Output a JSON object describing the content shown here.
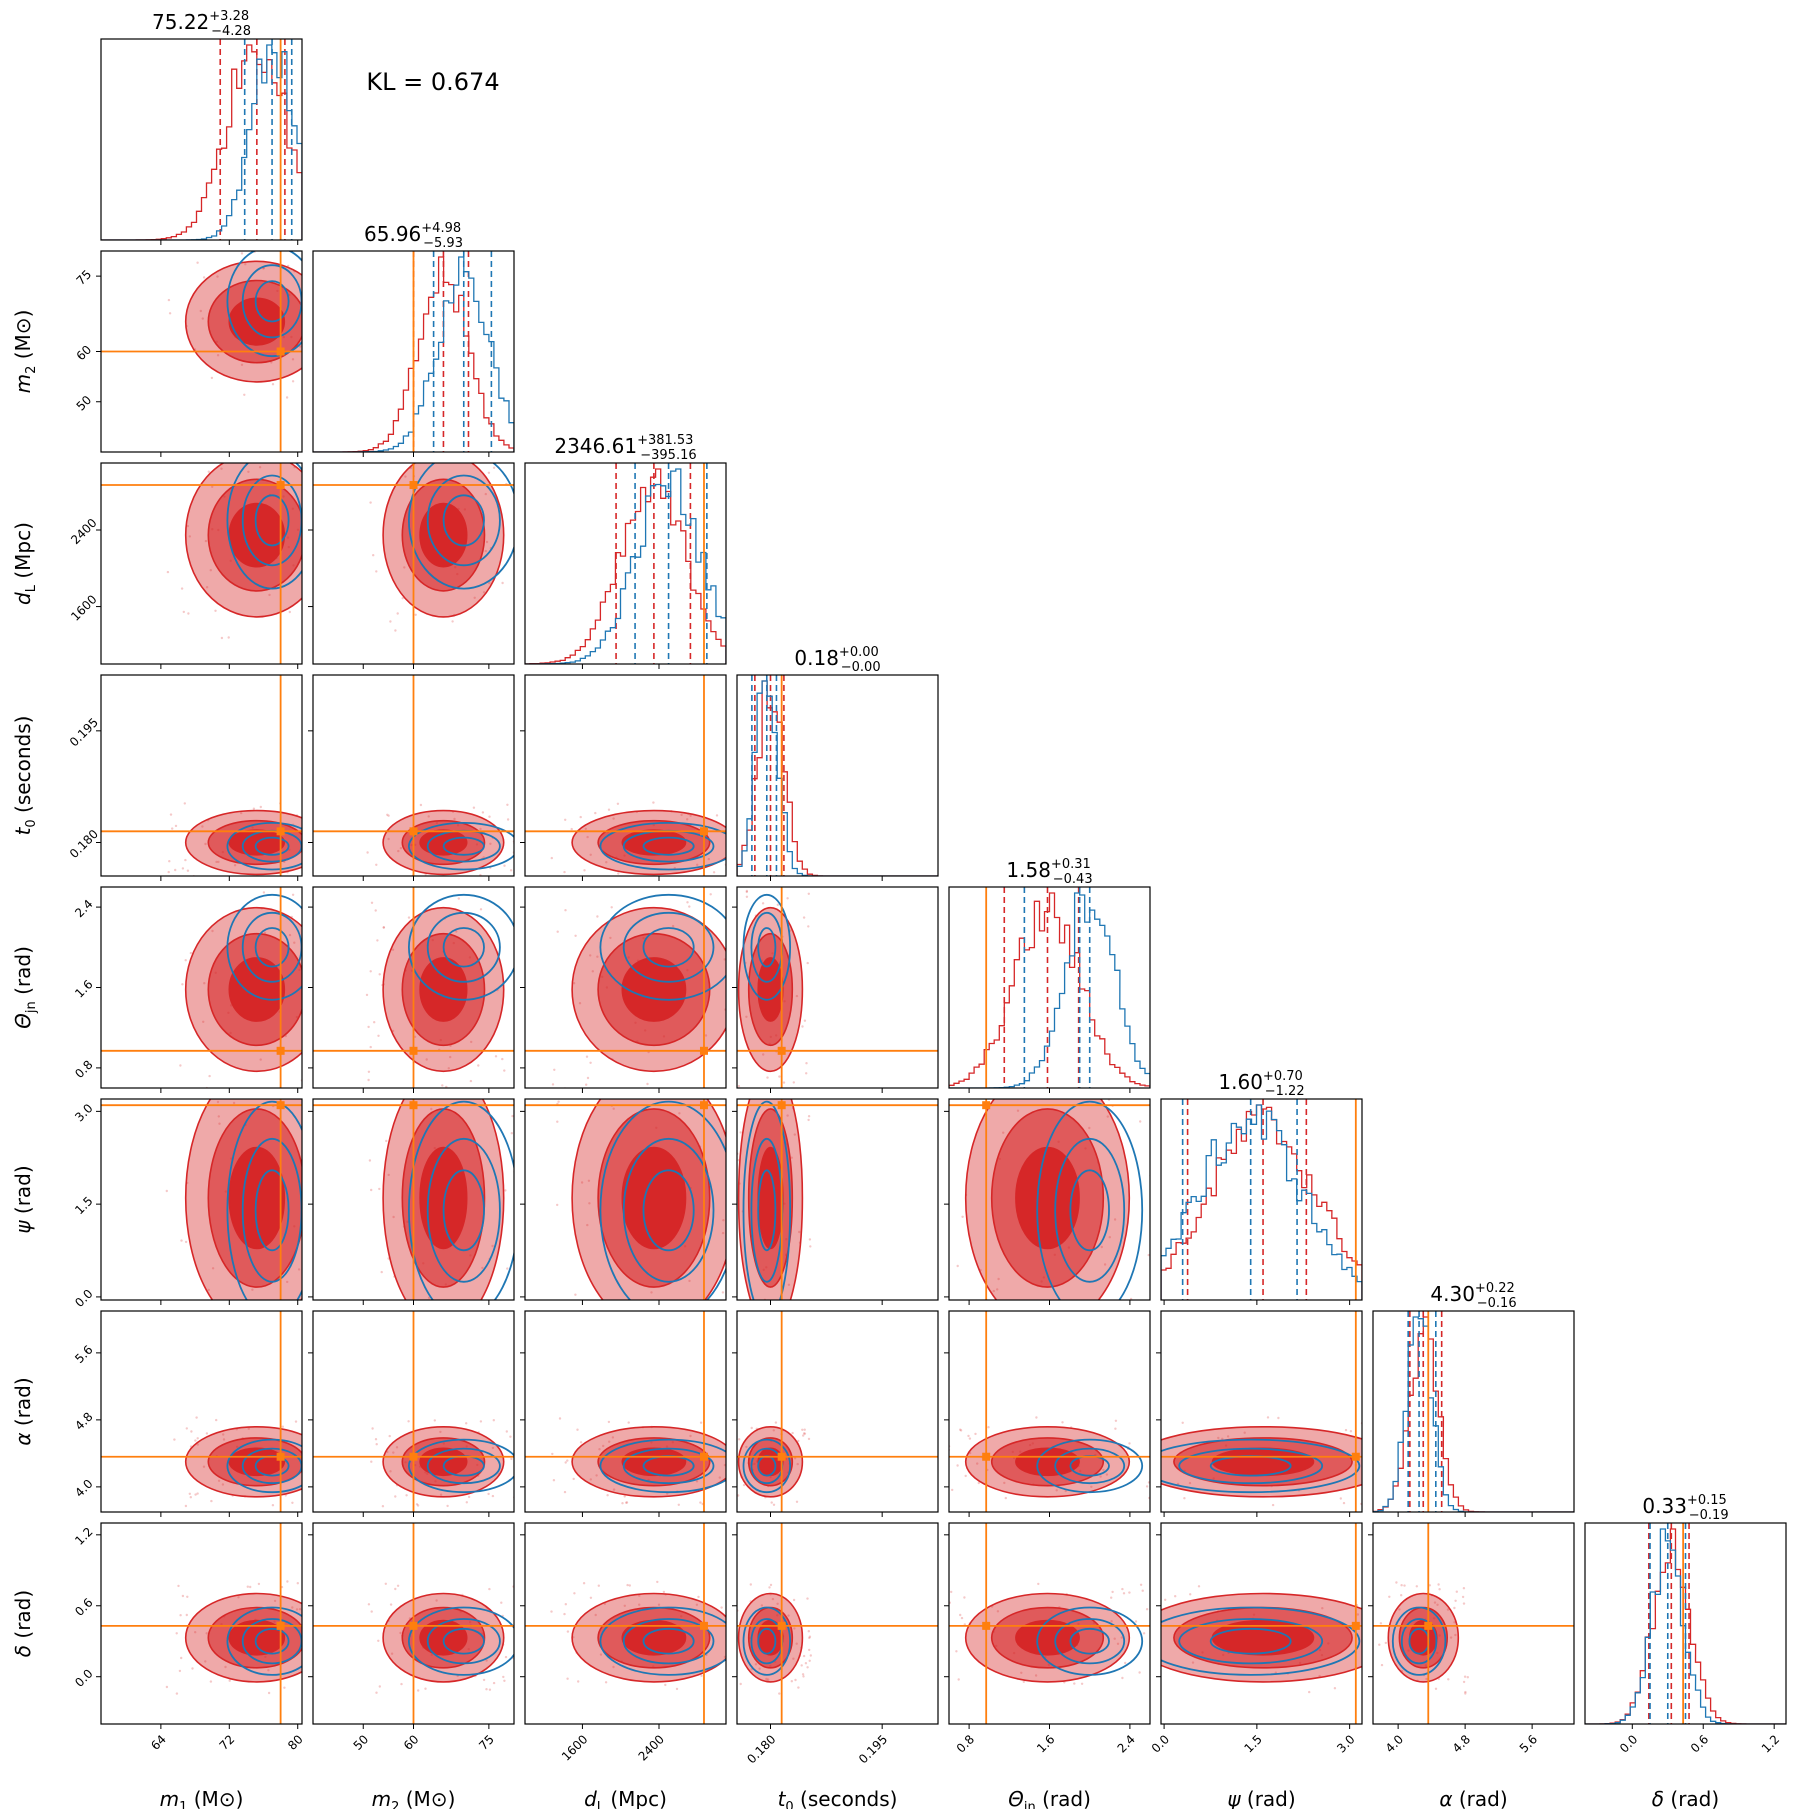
{
  "chart_data": {
    "type": "corner",
    "annotation": "KL = 0.674",
    "colors": {
      "posterior_a": "#d62728",
      "posterior_b": "#1f77b4",
      "truth": "#ff7f0e"
    },
    "parameters": [
      {
        "key": "m1",
        "label_main": "m",
        "label_sub": "1",
        "label_unit": " (M⊙)",
        "range": [
          57,
          80.5
        ],
        "ticks": [
          64,
          72,
          80
        ],
        "tick_labels": [
          "64",
          "72",
          "80"
        ],
        "truth": 78,
        "med_a": 75.22,
        "med_b": 77.0,
        "ci_a": [
          70.94,
          78.5
        ],
        "ci_b": [
          73.8,
          79.3
        ],
        "truth_extra": 78.8,
        "title_value": "75.22",
        "title_plus": "+3.28",
        "title_minus": "−4.28"
      },
      {
        "key": "m2",
        "label_main": "m",
        "label_sub": "2",
        "label_unit": " (M⊙)",
        "range": [
          40,
          80
        ],
        "ticks": [
          50,
          60,
          75
        ],
        "tick_labels": [
          "50",
          "60",
          "75"
        ],
        "truth": 60,
        "med_a": 65.96,
        "med_b": 70.0,
        "ci_a": [
          60.03,
          70.94
        ],
        "ci_b": [
          64.0,
          75.5
        ],
        "title_value": "65.96",
        "title_plus": "+4.98",
        "title_minus": "−5.93"
      },
      {
        "key": "dL",
        "label_main": "d",
        "label_sub": "L",
        "label_unit": " (Mpc)",
        "range": [
          1000,
          3100
        ],
        "ticks": [
          1600,
          2400
        ],
        "tick_labels": [
          "1600",
          "2400"
        ],
        "truth": 2870,
        "med_a": 2346.61,
        "med_b": 2500,
        "ci_a": [
          1951.45,
          2728.14
        ],
        "ci_b": [
          2150,
          2900
        ],
        "title_value": "2346.61",
        "title_plus": "+381.53",
        "title_minus": "−395.16"
      },
      {
        "key": "t0",
        "label_main": "t",
        "label_sub": "0",
        "label_unit": " (seconds)",
        "range": [
          0.1755,
          0.2025
        ],
        "ticks": [
          0.18,
          0.195
        ],
        "tick_labels": [
          "0.180",
          "0.195"
        ],
        "truth": 0.1815,
        "med_a": 0.18,
        "med_b": 0.1795,
        "ci_a": [
          0.1779,
          0.1818
        ],
        "ci_b": [
          0.1775,
          0.1808
        ],
        "title_value": "0.18",
        "title_plus": "+0.00",
        "title_minus": "−0.00"
      },
      {
        "key": "theta",
        "label_main": "Θ",
        "label_sub": "jn",
        "label_unit": " (rad)",
        "range": [
          0.6,
          2.6
        ],
        "ticks": [
          0.8,
          1.6,
          2.4
        ],
        "tick_labels": [
          "0.8",
          "1.6",
          "2.4"
        ],
        "truth": 0.97,
        "med_a": 1.58,
        "med_b": 2.0,
        "ci_a": [
          1.15,
          1.89
        ],
        "ci_b": [
          1.35,
          1.9
        ],
        "title_value": "1.58",
        "title_plus": "+0.31",
        "title_minus": "−0.43"
      },
      {
        "key": "psi",
        "label_main": "ψ",
        "label_sub": "",
        "label_unit": " (rad)",
        "range": [
          -0.05,
          3.2
        ],
        "ticks": [
          0.0,
          1.5,
          3.0
        ],
        "tick_labels": [
          "0.0",
          "1.5",
          "3.0"
        ],
        "truth": 3.1,
        "med_a": 1.6,
        "med_b": 1.4,
        "ci_a": [
          0.38,
          2.3
        ],
        "ci_b": [
          0.3,
          2.15
        ],
        "title_value": "1.60",
        "title_plus": "+0.70",
        "title_minus": "−1.22"
      },
      {
        "key": "alpha",
        "label_main": "α",
        "label_sub": "",
        "label_unit": " (rad)",
        "range": [
          3.7,
          6.1
        ],
        "ticks": [
          4.0,
          4.8,
          5.6
        ],
        "tick_labels": [
          "4.0",
          "4.8",
          "5.6"
        ],
        "truth": 4.36,
        "med_a": 4.3,
        "med_b": 4.25,
        "ci_a": [
          4.14,
          4.52
        ],
        "ci_b": [
          4.12,
          4.45
        ],
        "title_value": "4.30",
        "title_plus": "+0.22",
        "title_minus": "−0.16"
      },
      {
        "key": "delta",
        "label_main": "δ",
        "label_sub": "",
        "label_unit": " (rad)",
        "range": [
          -0.4,
          1.3
        ],
        "ticks": [
          0.0,
          0.6,
          1.2
        ],
        "tick_labels": [
          "0.0",
          "0.6",
          "1.2"
        ],
        "truth": 0.43,
        "med_a": 0.33,
        "med_b": 0.3,
        "ci_a": [
          0.14,
          0.48
        ],
        "ci_b": [
          0.15,
          0.45
        ],
        "title_value": "0.33",
        "title_plus": "+0.15",
        "title_minus": "−0.19"
      }
    ]
  }
}
